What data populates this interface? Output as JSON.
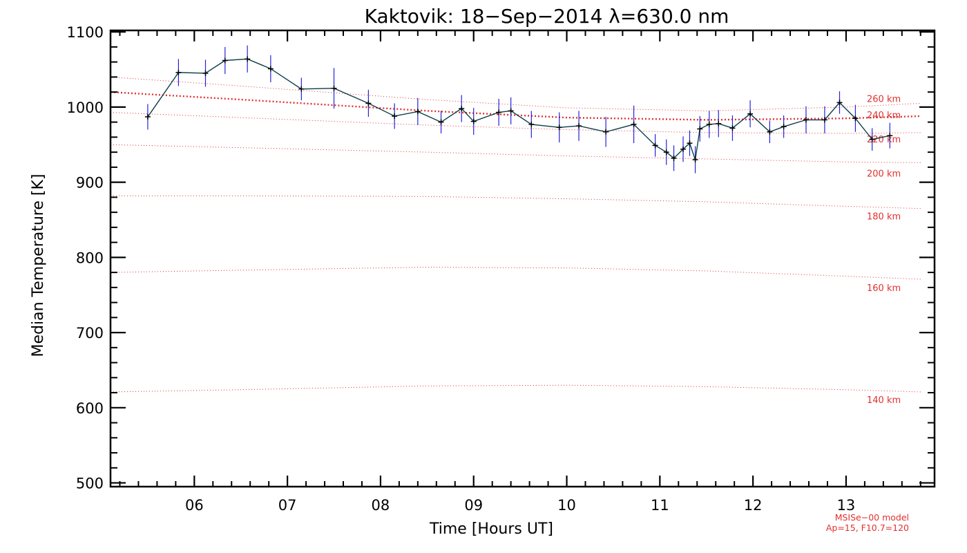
{
  "chart_data": {
    "type": "line",
    "title": "Kaktovik: 18−Sep−2014 λ=630.0 nm",
    "xlabel": "Time [Hours UT]",
    "ylabel": "Median Temperature [K]",
    "xlim": [
      5.1,
      13.95
    ],
    "ylim": [
      495,
      1102
    ],
    "x_ticks": [
      6,
      7,
      8,
      9,
      10,
      11,
      12,
      13
    ],
    "x_tick_labels": [
      "06",
      "07",
      "08",
      "09",
      "10",
      "11",
      "12",
      "13"
    ],
    "y_ticks": [
      500,
      600,
      700,
      800,
      900,
      1000,
      1100
    ],
    "y_tick_labels": [
      "500",
      "600",
      "700",
      "800",
      "900",
      "1000",
      "1100"
    ],
    "grid": false,
    "series": [
      {
        "line_color": "#0a3d4a",
        "marker_color": "#000000",
        "errorbar_color": "#2222dd",
        "x": [
          5.5,
          5.83,
          6.12,
          6.33,
          6.57,
          6.82,
          7.15,
          7.5,
          7.87,
          8.15,
          8.4,
          8.65,
          8.87,
          9.0,
          9.27,
          9.4,
          9.62,
          9.92,
          10.13,
          10.42,
          10.72,
          10.95,
          11.07,
          11.15,
          11.25,
          11.32,
          11.38,
          11.43,
          11.53,
          11.63,
          11.78,
          11.97,
          12.18,
          12.33,
          12.57,
          12.77,
          12.93,
          13.1,
          13.28,
          13.47
        ],
        "y": [
          987,
          1046,
          1045,
          1062,
          1064,
          1051,
          1024,
          1025,
          1005,
          988,
          994,
          980,
          998,
          981,
          993,
          995,
          977,
          973,
          975,
          967,
          977,
          949,
          940,
          932,
          944,
          952,
          930,
          971,
          977,
          978,
          972,
          991,
          967,
          974,
          983,
          983,
          1006,
          985,
          957,
          962
        ],
        "err": [
          17,
          18,
          18,
          18,
          18,
          18,
          15,
          27,
          18,
          17,
          18,
          15,
          18,
          18,
          18,
          18,
          18,
          20,
          20,
          20,
          25,
          15,
          17,
          17,
          17,
          17,
          18,
          17,
          18,
          18,
          17,
          18,
          15,
          15,
          18,
          18,
          15,
          18,
          15,
          17
        ]
      }
    ],
    "model_lines": [
      {
        "label": "140 km",
        "x": [
          5.1,
          6.5,
          8.5,
          10.0,
          11.5,
          13.0,
          13.8
        ],
        "y": [
          621,
          624,
          629,
          630,
          628,
          624,
          621
        ]
      },
      {
        "label": "160 km",
        "x": [
          5.1,
          6.5,
          8.5,
          10.0,
          11.5,
          13.0,
          13.8
        ],
        "y": [
          780,
          783,
          787,
          786,
          782,
          775,
          771
        ]
      },
      {
        "label": "180 km",
        "x": [
          5.1,
          6.5,
          8.5,
          10.0,
          11.5,
          13.0,
          13.8
        ],
        "y": [
          882,
          882,
          881,
          878,
          874,
          868,
          865
        ]
      },
      {
        "label": "200 km",
        "x": [
          5.1,
          6.5,
          8.5,
          10.0,
          11.5,
          13.0,
          13.8
        ],
        "y": [
          950,
          946,
          940,
          935,
          931,
          927,
          926
        ]
      },
      {
        "label": "220 km",
        "x": [
          5.1,
          6.5,
          8.5,
          10.0,
          11.5,
          13.0,
          13.8
        ],
        "y": [
          993,
          986,
          976,
          970,
          966,
          965,
          966
        ]
      },
      {
        "label": "240 km",
        "x": [
          5.1,
          6.5,
          8.5,
          10.0,
          11.5,
          13.0,
          13.8
        ],
        "y": [
          1020,
          1010,
          995,
          986,
          983,
          985,
          988
        ]
      },
      {
        "label": "260 km",
        "x": [
          5.1,
          6.5,
          8.5,
          10.0,
          11.5,
          13.0,
          13.8
        ],
        "y": [
          1040,
          1028,
          1010,
          999,
          995,
          1000,
          1005
        ]
      }
    ],
    "highlight_model_label": "240 km",
    "model_color": "#e03030",
    "annotations": [
      "MSISe−00 model",
      "Ap=15, F10.7=120"
    ]
  }
}
